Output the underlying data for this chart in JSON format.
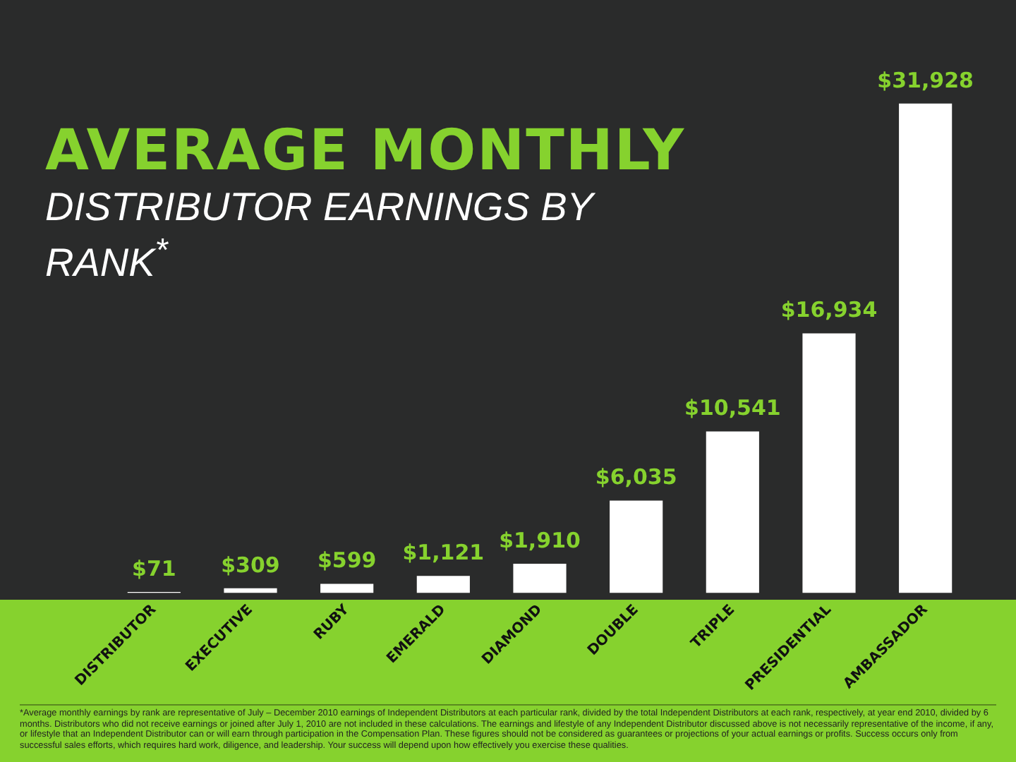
{
  "chart_data": {
    "type": "bar",
    "title": "AVERAGE MONTHLY",
    "subtitle": "DISTRIBUTOR EARNINGS BY RANK$^{*}$",
    "categories": [
      "DISTRIBUTOR",
      "EXECUTIVE",
      "RUBY",
      "EMERALD",
      "DIAMOND",
      "DOUBLE",
      "TRIPLE",
      "PRESIDENTIAL",
      "AMBASSADOR"
    ],
    "values": [
      71,
      309,
      599,
      1121,
      1910,
      6035,
      10541,
      16934,
      31928
    ],
    "value_labels": [
      "$71",
      "$309",
      "$599",
      "$1,121",
      "$1,910",
      "$6,035",
      "$10,541",
      "$16,934",
      "$31,928"
    ],
    "color": "#ffffff",
    "tick_labels": "x",
    "annotations": [
      "*Average monthly earnings by rank are representative of July – December 2010 earnings of Independent Distributors at each particular rank, divided by the total Independent Distributors at each rank, respectively, at year end 2010, divided by 6 months. Distributors who did not receive earnings or joined after July 1, 2010 are not included in these calculations. The earnings and lifestyle of any Independent Distributor discussed above is not necessarily representative of the income, if any, or lifestyle that an Independent Distributor can or will earn through participation in the Compensation Plan. These figures should not be considered as guarantees or projections of your actual earnings or profits. Success occurs only from successful sales efforts, which requires hard work, diligence, and leadership. Your success will depend upon how effectively you exercise these qualities."
    ]
  }
}
